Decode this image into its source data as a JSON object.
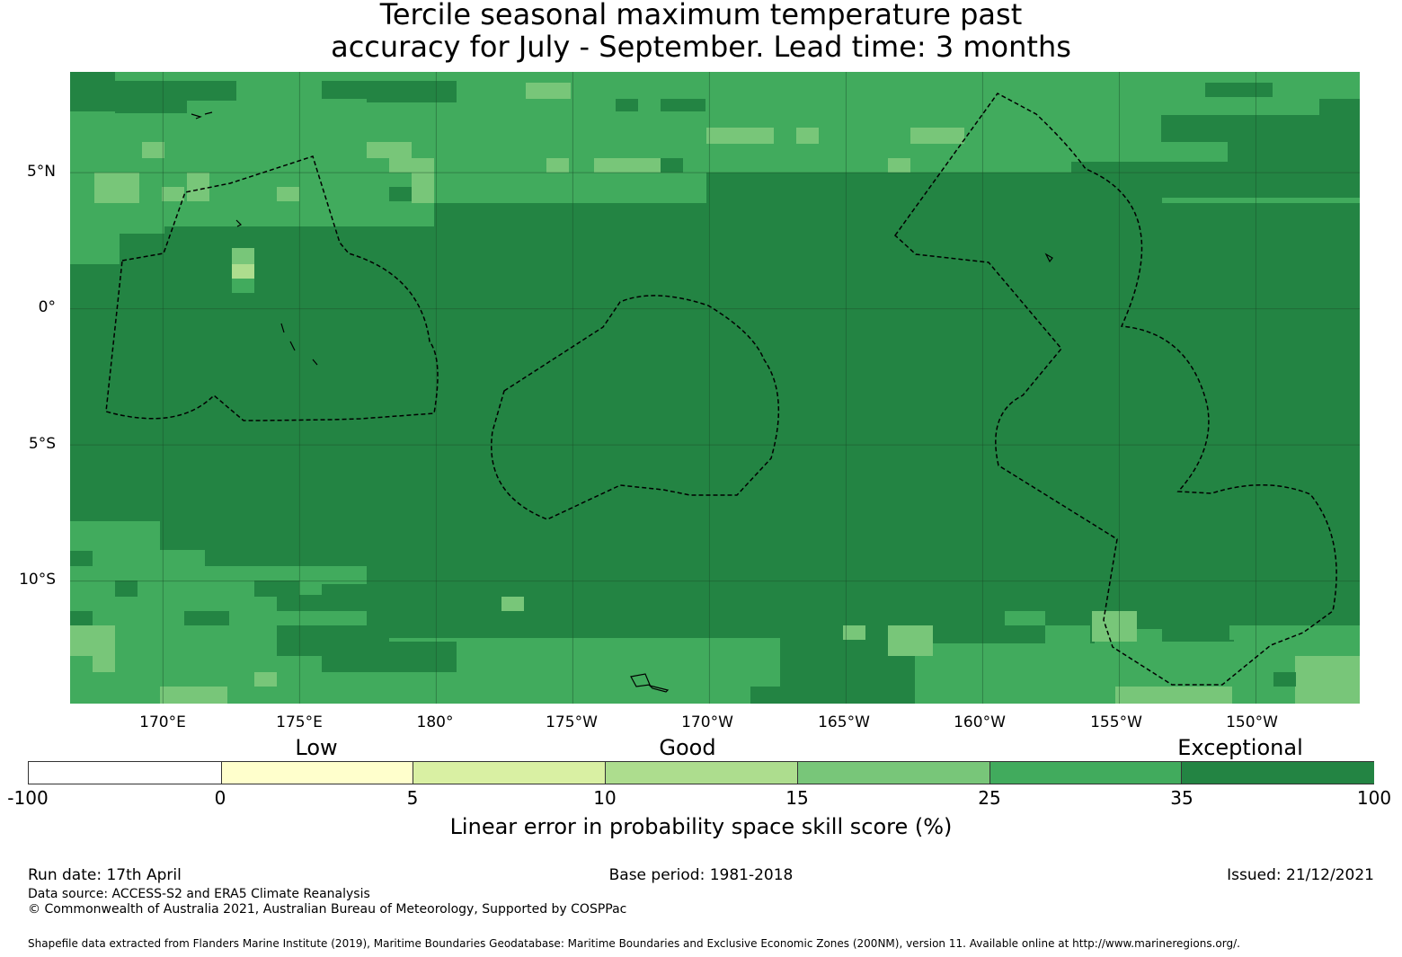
{
  "title_line1": "Tercile seasonal maximum temperature past",
  "title_line2": "accuracy for July - September. Lead time: 3 months",
  "map": {
    "lat_labels": [
      "5°N",
      "0°",
      "5°S",
      "10°S"
    ],
    "lon_labels": [
      "170°E",
      "175°E",
      "180°",
      "175°W",
      "170°W",
      "165°W",
      "160°W",
      "155°W",
      "150°W"
    ],
    "lon_range": [
      166.6,
      213.8
    ],
    "lat_range": [
      -14.5,
      8.7
    ],
    "lat_ticks": [
      5,
      0,
      -5,
      -10
    ],
    "lon_ticks": [
      170,
      175,
      180,
      185,
      190,
      195,
      200,
      205,
      210
    ]
  },
  "colorbar": {
    "categories": [
      "Low",
      "Good",
      "Exceptional"
    ],
    "ticks": [
      "-100",
      "0",
      "5",
      "10",
      "15",
      "25",
      "35",
      "100"
    ],
    "colors": [
      "#ffffff",
      "#ffffcc",
      "#d9f0a3",
      "#addd8e",
      "#78c679",
      "#41ab5d",
      "#238443"
    ],
    "label": "Linear error in probability space skill score (%)"
  },
  "footer": {
    "run_date": "Run date: 17th April",
    "base_period": "Base period: 1981-2018",
    "issued": "Issued: 21/12/2021",
    "data_source": "Data source: ACCESS-S2 and ERA5 Climate Reanalysis",
    "copyright": "© Commonwealth of Australia 2021, Australian Bureau of Meteorology, Supported by COSPPac",
    "shapefile": "Shapefile data extracted from Flanders Marine Institute (2019), Maritime Boundaries Geodatabase: Maritime Boundaries and Exclusive Economic Zones (200NM), version 11. Available online at http://www.marineregions.org/."
  }
}
